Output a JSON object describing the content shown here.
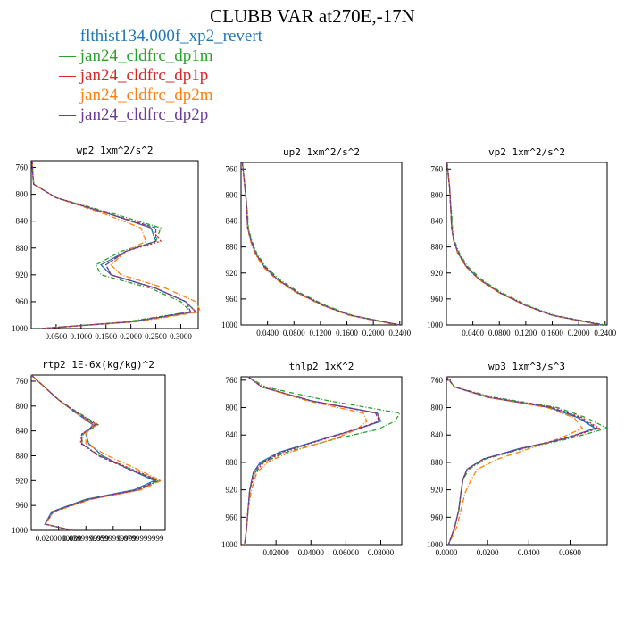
{
  "title": "CLUBB VAR at270E,-17N",
  "colors": {
    "s0": "#1f77b4",
    "s1": "#2ca02c",
    "s2": "#d62728",
    "s3": "#ff7f0e",
    "s4": "#6a3d9a"
  },
  "legend": [
    {
      "name": "flthist134.000f_xp2_revert",
      "color": "#1f77b4",
      "dash": ""
    },
    {
      "name": "jan24_cldfrc_dp1m",
      "color": "#2ca02c",
      "dash": "5,2,1,2"
    },
    {
      "name": "jan24_cldfrc_dp1p",
      "color": "#d62728",
      "dash": "2,2"
    },
    {
      "name": "jan24_cldfrc_dp2m",
      "color": "#ff7f0e",
      "dash": "6,2,1,2"
    },
    {
      "name": "jan24_cldfrc_dp2p",
      "color": "#6a3d9a",
      "dash": "4,2"
    }
  ],
  "chart_data": [
    {
      "type": "line",
      "title": "wp2  1xm^2/s^2",
      "xlim": [
        0,
        0.335
      ],
      "ylim": [
        1000,
        750
      ],
      "yticks": [
        760,
        800,
        840,
        880,
        920,
        960,
        1000
      ],
      "xticklabels": [
        "0.0500",
        "0.1000",
        "0.1500",
        "0.2000",
        "0.2500",
        "0.3000"
      ],
      "xtickvalues": [
        0.05,
        0.1,
        0.15,
        0.2,
        0.25,
        0.3
      ],
      "y": [
        750,
        770,
        785,
        805,
        830,
        850,
        870,
        885,
        905,
        920,
        940,
        960,
        975,
        990,
        1000
      ],
      "series": [
        {
          "values": [
            0.002,
            0.003,
            0.005,
            0.05,
            0.16,
            0.24,
            0.25,
            0.19,
            0.14,
            0.16,
            0.25,
            0.31,
            0.33,
            0.2,
            0.02
          ]
        },
        {
          "values": [
            0.002,
            0.003,
            0.005,
            0.05,
            0.17,
            0.26,
            0.25,
            0.18,
            0.13,
            0.14,
            0.24,
            0.3,
            0.32,
            0.19,
            0.02
          ]
        },
        {
          "values": [
            0.002,
            0.003,
            0.005,
            0.05,
            0.16,
            0.24,
            0.26,
            0.19,
            0.15,
            0.16,
            0.25,
            0.31,
            0.33,
            0.2,
            0.02
          ]
        },
        {
          "values": [
            0.002,
            0.003,
            0.005,
            0.05,
            0.15,
            0.22,
            0.23,
            0.19,
            0.16,
            0.18,
            0.27,
            0.33,
            0.34,
            0.21,
            0.02
          ]
        },
        {
          "values": [
            0.002,
            0.003,
            0.005,
            0.05,
            0.16,
            0.25,
            0.25,
            0.19,
            0.15,
            0.16,
            0.25,
            0.31,
            0.32,
            0.2,
            0.02
          ]
        }
      ]
    },
    {
      "type": "line",
      "title": "up2  1xm^2/s^2",
      "xlim": [
        0,
        0.243
      ],
      "ylim": [
        1000,
        750
      ],
      "yticks": [
        760,
        800,
        840,
        880,
        920,
        960,
        1000
      ],
      "xticklabels": [
        "0.0400",
        "0.0800",
        "0.1200",
        "0.1600",
        "0.2000",
        "0.2400"
      ],
      "xtickvalues": [
        0.04,
        0.08,
        0.12,
        0.16,
        0.2,
        0.24
      ],
      "y": [
        750,
        770,
        790,
        810,
        830,
        850,
        870,
        890,
        910,
        930,
        950,
        970,
        985,
        1000
      ],
      "series": [
        {
          "values": [
            0.002,
            0.004,
            0.006,
            0.008,
            0.009,
            0.01,
            0.015,
            0.022,
            0.035,
            0.055,
            0.085,
            0.125,
            0.165,
            0.24
          ]
        },
        {
          "values": [
            0.002,
            0.004,
            0.006,
            0.008,
            0.01,
            0.011,
            0.016,
            0.024,
            0.037,
            0.058,
            0.088,
            0.128,
            0.168,
            0.24
          ]
        },
        {
          "values": [
            0.002,
            0.004,
            0.006,
            0.008,
            0.009,
            0.01,
            0.015,
            0.022,
            0.035,
            0.055,
            0.085,
            0.125,
            0.165,
            0.24
          ]
        },
        {
          "values": [
            0.002,
            0.004,
            0.006,
            0.008,
            0.009,
            0.01,
            0.014,
            0.021,
            0.033,
            0.053,
            0.083,
            0.123,
            0.163,
            0.235
          ]
        },
        {
          "values": [
            0.002,
            0.004,
            0.006,
            0.008,
            0.009,
            0.01,
            0.015,
            0.022,
            0.035,
            0.055,
            0.085,
            0.125,
            0.165,
            0.24
          ]
        }
      ]
    },
    {
      "type": "line",
      "title": "vp2  1xm^2/s^2",
      "xlim": [
        0,
        0.243
      ],
      "ylim": [
        1000,
        750
      ],
      "yticks": [
        760,
        800,
        840,
        880,
        920,
        960,
        1000
      ],
      "xticklabels": [
        "0.0400",
        "0.0800",
        "0.1200",
        "0.1600",
        "0.2000",
        "0.2400"
      ],
      "xtickvalues": [
        0.04,
        0.08,
        0.12,
        0.16,
        0.2,
        0.24
      ],
      "y": [
        750,
        770,
        790,
        810,
        830,
        850,
        870,
        890,
        910,
        930,
        950,
        970,
        985,
        1000
      ],
      "series": [
        {
          "values": [
            0.001,
            0.003,
            0.005,
            0.006,
            0.007,
            0.008,
            0.011,
            0.018,
            0.03,
            0.05,
            0.08,
            0.12,
            0.16,
            0.235
          ]
        },
        {
          "values": [
            0.001,
            0.003,
            0.005,
            0.006,
            0.008,
            0.009,
            0.012,
            0.02,
            0.032,
            0.053,
            0.083,
            0.123,
            0.163,
            0.24
          ]
        },
        {
          "values": [
            0.001,
            0.003,
            0.005,
            0.006,
            0.007,
            0.008,
            0.011,
            0.018,
            0.03,
            0.05,
            0.08,
            0.12,
            0.16,
            0.235
          ]
        },
        {
          "values": [
            0.001,
            0.003,
            0.005,
            0.006,
            0.007,
            0.008,
            0.011,
            0.017,
            0.029,
            0.049,
            0.079,
            0.119,
            0.159,
            0.232
          ]
        },
        {
          "values": [
            0.001,
            0.003,
            0.005,
            0.006,
            0.007,
            0.008,
            0.011,
            0.018,
            0.03,
            0.05,
            0.08,
            0.12,
            0.16,
            0.235
          ]
        }
      ]
    },
    {
      "type": "line",
      "title": "rtp2  1E-6x(kg/kg)^2",
      "xlim": [
        0,
        0.098
      ],
      "ylim": [
        1000,
        750
      ],
      "yticks": [
        760,
        800,
        840,
        880,
        920,
        960,
        1000
      ],
      "xticklabels": [
        "0.0200000000",
        "0.0399999999",
        "0.0599999999",
        "0.0799999999"
      ],
      "xtickvalues": [
        0.02,
        0.04,
        0.06,
        0.08
      ],
      "y": [
        750,
        770,
        790,
        810,
        830,
        845,
        860,
        880,
        900,
        920,
        935,
        950,
        970,
        990,
        1000
      ],
      "series": [
        {
          "values": [
            0.0,
            0.01,
            0.02,
            0.032,
            0.045,
            0.04,
            0.042,
            0.052,
            0.07,
            0.09,
            0.075,
            0.04,
            0.015,
            0.01,
            0.03
          ]
        },
        {
          "values": [
            0.0,
            0.01,
            0.02,
            0.034,
            0.049,
            0.038,
            0.037,
            0.05,
            0.071,
            0.093,
            0.078,
            0.042,
            0.016,
            0.01,
            0.03
          ]
        },
        {
          "values": [
            0.0,
            0.01,
            0.02,
            0.033,
            0.048,
            0.037,
            0.036,
            0.05,
            0.072,
            0.094,
            0.079,
            0.043,
            0.016,
            0.01,
            0.03
          ]
        },
        {
          "values": [
            0.0,
            0.01,
            0.02,
            0.032,
            0.046,
            0.04,
            0.04,
            0.056,
            0.076,
            0.095,
            0.08,
            0.044,
            0.017,
            0.01,
            0.03
          ]
        },
        {
          "values": [
            0.0,
            0.01,
            0.02,
            0.033,
            0.047,
            0.037,
            0.037,
            0.049,
            0.07,
            0.092,
            0.077,
            0.042,
            0.016,
            0.01,
            0.03
          ]
        }
      ]
    },
    {
      "type": "line",
      "title": "thlp2  1xK^2",
      "xlim": [
        0,
        0.092
      ],
      "ylim": [
        1000,
        755
      ],
      "yticks": [
        760,
        800,
        840,
        880,
        920,
        960,
        1000
      ],
      "xticklabels": [
        "0.02000",
        "0.04000",
        "0.06000",
        "0.08000"
      ],
      "xtickvalues": [
        0.02,
        0.04,
        0.06,
        0.08
      ],
      "y": [
        755,
        770,
        790,
        808,
        820,
        832,
        845,
        865,
        880,
        895,
        920,
        950,
        980,
        1000
      ],
      "series": [
        {
          "values": [
            0.004,
            0.012,
            0.04,
            0.078,
            0.08,
            0.066,
            0.048,
            0.022,
            0.011,
            0.007,
            0.005,
            0.004,
            0.003,
            0.002
          ]
        },
        {
          "values": [
            0.004,
            0.014,
            0.05,
            0.091,
            0.088,
            0.078,
            0.055,
            0.026,
            0.013,
            0.008,
            0.005,
            0.004,
            0.003,
            0.002
          ]
        },
        {
          "values": [
            0.004,
            0.012,
            0.04,
            0.078,
            0.079,
            0.066,
            0.049,
            0.024,
            0.013,
            0.008,
            0.005,
            0.004,
            0.003,
            0.002
          ]
        },
        {
          "values": [
            0.004,
            0.012,
            0.038,
            0.07,
            0.072,
            0.066,
            0.054,
            0.028,
            0.015,
            0.009,
            0.006,
            0.004,
            0.003,
            0.002
          ]
        },
        {
          "values": [
            0.004,
            0.012,
            0.04,
            0.077,
            0.079,
            0.065,
            0.048,
            0.023,
            0.012,
            0.007,
            0.005,
            0.004,
            0.003,
            0.002
          ]
        }
      ]
    },
    {
      "type": "line",
      "title": "wp3  1xm^3/s^3",
      "xlim": [
        0,
        0.078
      ],
      "ylim": [
        1000,
        755
      ],
      "yticks": [
        760,
        800,
        840,
        880,
        920,
        960,
        1000
      ],
      "xticklabels": [
        "0.0000",
        "0.0200",
        "0.0400",
        "0.0600"
      ],
      "xtickvalues": [
        0.0,
        0.02,
        0.04,
        0.06
      ],
      "y": [
        755,
        770,
        785,
        800,
        815,
        830,
        845,
        860,
        875,
        890,
        905,
        925,
        950,
        975,
        1000
      ],
      "series": [
        {
          "values": [
            0.0,
            0.004,
            0.02,
            0.05,
            0.064,
            0.072,
            0.058,
            0.035,
            0.018,
            0.01,
            0.008,
            0.007,
            0.006,
            0.004,
            0.001
          ]
        },
        {
          "values": [
            0.0,
            0.004,
            0.023,
            0.054,
            0.068,
            0.078,
            0.06,
            0.037,
            0.019,
            0.011,
            0.008,
            0.007,
            0.006,
            0.004,
            0.001
          ]
        },
        {
          "values": [
            0.0,
            0.004,
            0.021,
            0.052,
            0.066,
            0.074,
            0.058,
            0.036,
            0.018,
            0.01,
            0.008,
            0.007,
            0.006,
            0.004,
            0.001
          ]
        },
        {
          "values": [
            0.0,
            0.004,
            0.02,
            0.049,
            0.062,
            0.066,
            0.055,
            0.04,
            0.025,
            0.015,
            0.012,
            0.009,
            0.007,
            0.005,
            0.001
          ]
        },
        {
          "values": [
            0.0,
            0.004,
            0.021,
            0.051,
            0.065,
            0.073,
            0.057,
            0.036,
            0.018,
            0.01,
            0.008,
            0.007,
            0.006,
            0.004,
            0.001
          ]
        }
      ]
    }
  ]
}
